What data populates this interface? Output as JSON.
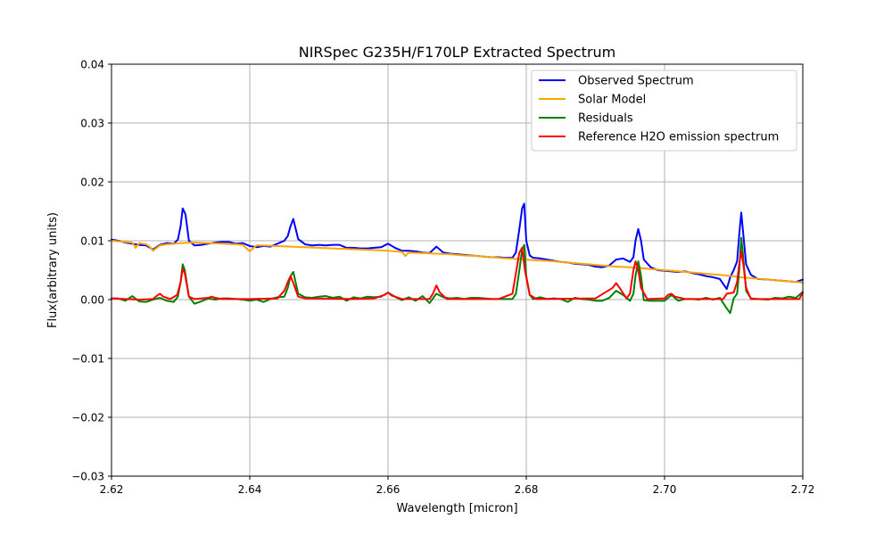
{
  "chart_data": {
    "type": "line",
    "title": "NIRSpec G235H/F170LP Extracted Spectrum",
    "xlabel": "Wavelength [micron]",
    "ylabel": "Flux(arbitrary units)",
    "xlim": [
      2.62,
      2.72
    ],
    "ylim": [
      -0.03,
      0.04
    ],
    "xticks": [
      2.62,
      2.64,
      2.66,
      2.68,
      2.7,
      2.72
    ],
    "xtick_labels": [
      "2.62",
      "2.64",
      "2.66",
      "2.68",
      "2.70",
      "2.72"
    ],
    "yticks": [
      -0.03,
      -0.02,
      -0.01,
      0.0,
      0.01,
      0.02,
      0.03,
      0.04
    ],
    "ytick_labels": [
      "−0.03",
      "−0.02",
      "−0.01",
      "0.00",
      "0.01",
      "0.02",
      "0.03",
      "0.04"
    ],
    "grid": true,
    "legend_position": "top-right",
    "series": [
      {
        "name": "Observed Spectrum",
        "color": "#0000ff",
        "x": [
          2.62,
          2.621,
          2.622,
          2.623,
          2.624,
          2.625,
          2.626,
          2.627,
          2.628,
          2.629,
          2.6296,
          2.63,
          2.6303,
          2.6307,
          2.6312,
          2.632,
          2.633,
          2.634,
          2.635,
          2.636,
          2.637,
          2.638,
          2.639,
          2.64,
          2.641,
          2.642,
          2.643,
          2.644,
          2.645,
          2.6455,
          2.6459,
          2.6463,
          2.647,
          2.648,
          2.649,
          2.65,
          2.651,
          2.652,
          2.653,
          2.654,
          2.655,
          2.656,
          2.657,
          2.658,
          2.659,
          2.66,
          2.661,
          2.662,
          2.663,
          2.664,
          2.665,
          2.666,
          2.667,
          2.668,
          2.669,
          2.67,
          2.671,
          2.672,
          2.673,
          2.674,
          2.675,
          2.676,
          2.677,
          2.678,
          2.6785,
          2.679,
          2.6794,
          2.6797,
          2.68,
          2.6805,
          2.681,
          2.682,
          2.683,
          2.684,
          2.685,
          2.686,
          2.687,
          2.688,
          2.689,
          2.69,
          2.691,
          2.692,
          2.693,
          2.694,
          2.695,
          2.6955,
          2.6958,
          2.6962,
          2.6966,
          2.697,
          2.698,
          2.699,
          2.7,
          2.701,
          2.702,
          2.703,
          2.704,
          2.705,
          2.706,
          2.707,
          2.708,
          2.709,
          2.7095,
          2.71,
          2.7105,
          2.7108,
          2.7111,
          2.7114,
          2.7118,
          2.7125,
          2.7135,
          2.715,
          2.716,
          2.717,
          2.718,
          2.719,
          2.72
        ],
        "y": [
          0.0102,
          0.01,
          0.0097,
          0.0095,
          0.0093,
          0.0092,
          0.0085,
          0.0093,
          0.0096,
          0.0095,
          0.0102,
          0.0125,
          0.0155,
          0.0145,
          0.01,
          0.0092,
          0.0093,
          0.0095,
          0.0097,
          0.0098,
          0.0098,
          0.0095,
          0.0096,
          0.0091,
          0.0089,
          0.0091,
          0.009,
          0.0095,
          0.01,
          0.0108,
          0.0125,
          0.0137,
          0.0103,
          0.0094,
          0.0092,
          0.0093,
          0.0092,
          0.0093,
          0.0093,
          0.0088,
          0.0088,
          0.0087,
          0.0087,
          0.0088,
          0.0089,
          0.0095,
          0.0088,
          0.0083,
          0.0083,
          0.0082,
          0.008,
          0.0079,
          0.009,
          0.008,
          0.0078,
          0.0077,
          0.0076,
          0.0075,
          0.0074,
          0.0073,
          0.0072,
          0.0072,
          0.0071,
          0.0071,
          0.008,
          0.012,
          0.0155,
          0.0163,
          0.01,
          0.0075,
          0.0071,
          0.007,
          0.0068,
          0.0066,
          0.0064,
          0.0063,
          0.0061,
          0.006,
          0.0059,
          0.0056,
          0.0055,
          0.0058,
          0.0068,
          0.007,
          0.0064,
          0.0072,
          0.01,
          0.012,
          0.01,
          0.0068,
          0.0055,
          0.005,
          0.0049,
          0.0048,
          0.0047,
          0.0048,
          0.0045,
          0.0043,
          0.004,
          0.0038,
          0.0035,
          0.0018,
          0.0038,
          0.005,
          0.0065,
          0.011,
          0.0148,
          0.011,
          0.006,
          0.0042,
          0.0035,
          0.0034,
          0.0033,
          0.0032,
          0.0031,
          0.003,
          0.0034
        ]
      },
      {
        "name": "Solar Model",
        "color": "#ffa500",
        "x": [
          2.62,
          2.621,
          2.622,
          2.623,
          2.6235,
          2.624,
          2.625,
          2.6255,
          2.626,
          2.627,
          2.628,
          2.63,
          2.632,
          2.634,
          2.636,
          2.638,
          2.639,
          2.64,
          2.641,
          2.642,
          2.644,
          2.646,
          2.648,
          2.65,
          2.652,
          2.654,
          2.656,
          2.658,
          2.66,
          2.661,
          2.662,
          2.6625,
          2.663,
          2.665,
          2.667,
          2.669,
          2.671,
          2.673,
          2.675,
          2.677,
          2.679,
          2.681,
          2.683,
          2.685,
          2.687,
          2.689,
          2.691,
          2.693,
          2.695,
          2.697,
          2.699,
          2.701,
          2.703,
          2.705,
          2.707,
          2.709,
          2.711,
          2.713,
          2.715,
          2.717,
          2.72
        ],
        "y": [
          0.01,
          0.0099,
          0.0098,
          0.0097,
          0.0088,
          0.0096,
          0.0094,
          0.009,
          0.0083,
          0.0092,
          0.0094,
          0.0096,
          0.0097,
          0.0096,
          0.0095,
          0.0094,
          0.0093,
          0.0082,
          0.0092,
          0.0092,
          0.0091,
          0.009,
          0.0089,
          0.0088,
          0.0087,
          0.0086,
          0.0085,
          0.0084,
          0.0083,
          0.0082,
          0.0081,
          0.0074,
          0.008,
          0.0079,
          0.0078,
          0.0077,
          0.0075,
          0.0074,
          0.0072,
          0.007,
          0.0069,
          0.0067,
          0.0066,
          0.0064,
          0.0062,
          0.006,
          0.0058,
          0.0056,
          0.0055,
          0.0053,
          0.0051,
          0.0049,
          0.0047,
          0.0045,
          0.0043,
          0.0041,
          0.0038,
          0.0036,
          0.0034,
          0.0032,
          0.0029
        ]
      },
      {
        "name": "Residuals",
        "color": "#008000",
        "x": [
          2.62,
          2.621,
          2.622,
          2.623,
          2.624,
          2.625,
          2.626,
          2.627,
          2.628,
          2.629,
          2.6296,
          2.63,
          2.6303,
          2.6306,
          2.6312,
          2.632,
          2.633,
          2.634,
          2.635,
          2.636,
          2.637,
          2.638,
          2.639,
          2.64,
          2.641,
          2.642,
          2.643,
          2.644,
          2.645,
          2.6455,
          2.6459,
          2.6463,
          2.647,
          2.648,
          2.649,
          2.65,
          2.651,
          2.652,
          2.653,
          2.654,
          2.655,
          2.656,
          2.657,
          2.658,
          2.659,
          2.66,
          2.661,
          2.662,
          2.663,
          2.664,
          2.665,
          2.666,
          2.667,
          2.668,
          2.669,
          2.67,
          2.671,
          2.672,
          2.673,
          2.674,
          2.675,
          2.676,
          2.677,
          2.678,
          2.6785,
          2.679,
          2.6794,
          2.6797,
          2.68,
          2.6805,
          2.681,
          2.682,
          2.683,
          2.684,
          2.685,
          2.686,
          2.687,
          2.688,
          2.689,
          2.69,
          2.691,
          2.692,
          2.693,
          2.694,
          2.695,
          2.6955,
          2.6958,
          2.6962,
          2.6966,
          2.697,
          2.698,
          2.699,
          2.7,
          2.701,
          2.702,
          2.703,
          2.704,
          2.705,
          2.706,
          2.707,
          2.708,
          2.709,
          2.7095,
          2.71,
          2.7105,
          2.7108,
          2.7111,
          2.7114,
          2.7118,
          2.7125,
          2.7135,
          2.715,
          2.716,
          2.717,
          2.718,
          2.719,
          2.72
        ],
        "y": [
          0.0002,
          0.0002,
          -0.0002,
          0.0006,
          -0.0003,
          -0.0004,
          0.0,
          0.0003,
          -0.0002,
          -0.0004,
          0.0005,
          0.003,
          0.006,
          0.005,
          0.0005,
          -0.0007,
          -0.0003,
          0.0002,
          0.0,
          0.0002,
          0.0002,
          0.0001,
          0.0,
          -0.0002,
          0.0,
          -0.0004,
          0.0001,
          0.0004,
          0.0005,
          0.002,
          0.004,
          0.0047,
          0.001,
          0.0004,
          0.0003,
          0.0005,
          0.0006,
          0.0003,
          0.0005,
          -0.0002,
          0.0004,
          0.0002,
          0.0005,
          0.0004,
          0.0005,
          0.0012,
          0.0005,
          -0.0001,
          0.0004,
          -0.0002,
          0.0006,
          -0.0006,
          0.001,
          0.0004,
          0.0002,
          0.0003,
          0.0001,
          0.0003,
          0.0003,
          0.0002,
          0.0001,
          0.0001,
          0.0001,
          0.0001,
          0.001,
          0.005,
          0.0085,
          0.0093,
          0.004,
          0.0008,
          0.0001,
          0.0004,
          0.0001,
          0.0002,
          0.0001,
          -0.0004,
          0.0003,
          0.0001,
          0.0,
          -0.0002,
          -0.0002,
          0.0003,
          0.0015,
          0.0008,
          -0.0002,
          0.001,
          0.004,
          0.0065,
          0.004,
          -0.0001,
          -0.0002,
          -0.0002,
          -0.0002,
          0.0008,
          -0.0002,
          0.0001,
          0.0001,
          0.0,
          0.0003,
          0.0,
          0.0003,
          -0.0015,
          -0.0023,
          0.0002,
          0.001,
          0.005,
          0.0105,
          0.007,
          0.0015,
          0.0002,
          0.0001,
          0.0,
          0.0003,
          0.0002,
          0.0005,
          0.0003,
          0.0013
        ]
      },
      {
        "name": "Reference H2O emission spectrum",
        "color": "#ff0000",
        "x": [
          2.62,
          2.622,
          2.624,
          2.626,
          2.6265,
          2.627,
          2.6275,
          2.6285,
          2.6295,
          2.63,
          2.6303,
          2.6306,
          2.6312,
          2.632,
          2.634,
          2.6345,
          2.635,
          2.636,
          2.64,
          2.644,
          2.645,
          2.6455,
          2.6459,
          2.6463,
          2.647,
          2.648,
          2.655,
          2.658,
          2.6595,
          2.66,
          2.6605,
          2.662,
          2.666,
          2.6665,
          2.667,
          2.6675,
          2.6685,
          2.676,
          2.678,
          2.6785,
          2.679,
          2.6794,
          2.6798,
          2.6805,
          2.6815,
          2.69,
          2.6925,
          2.693,
          2.6935,
          2.6945,
          2.695,
          2.6955,
          2.6958,
          2.6962,
          2.6966,
          2.6975,
          2.7,
          2.7005,
          2.701,
          2.7015,
          2.703,
          2.7085,
          2.709,
          2.71,
          2.7105,
          2.7108,
          2.7111,
          2.7114,
          2.7118,
          2.7125,
          2.715,
          2.7195,
          2.72
        ],
        "y": [
          0.0002,
          0.0001,
          0.0,
          0.0001,
          0.0006,
          0.001,
          0.0005,
          0.0001,
          0.0008,
          0.003,
          0.0052,
          0.0045,
          0.0005,
          0.0001,
          0.0003,
          0.0005,
          0.0003,
          0.0001,
          0.0001,
          0.0002,
          0.0015,
          0.003,
          0.004,
          0.0028,
          0.0005,
          0.0002,
          0.0001,
          0.0002,
          0.0008,
          0.0012,
          0.0007,
          0.0001,
          0.0001,
          0.001,
          0.0024,
          0.0012,
          0.0001,
          0.0001,
          0.001,
          0.0045,
          0.008,
          0.0088,
          0.005,
          0.0008,
          0.0001,
          0.0002,
          0.002,
          0.0028,
          0.002,
          0.0002,
          0.001,
          0.005,
          0.0065,
          0.005,
          0.002,
          0.0001,
          0.0002,
          0.0008,
          0.001,
          0.0005,
          0.0001,
          0.0001,
          0.001,
          0.0012,
          0.003,
          0.006,
          0.0082,
          0.006,
          0.002,
          0.0001,
          0.0001,
          0.0001,
          0.0012
        ]
      }
    ]
  }
}
